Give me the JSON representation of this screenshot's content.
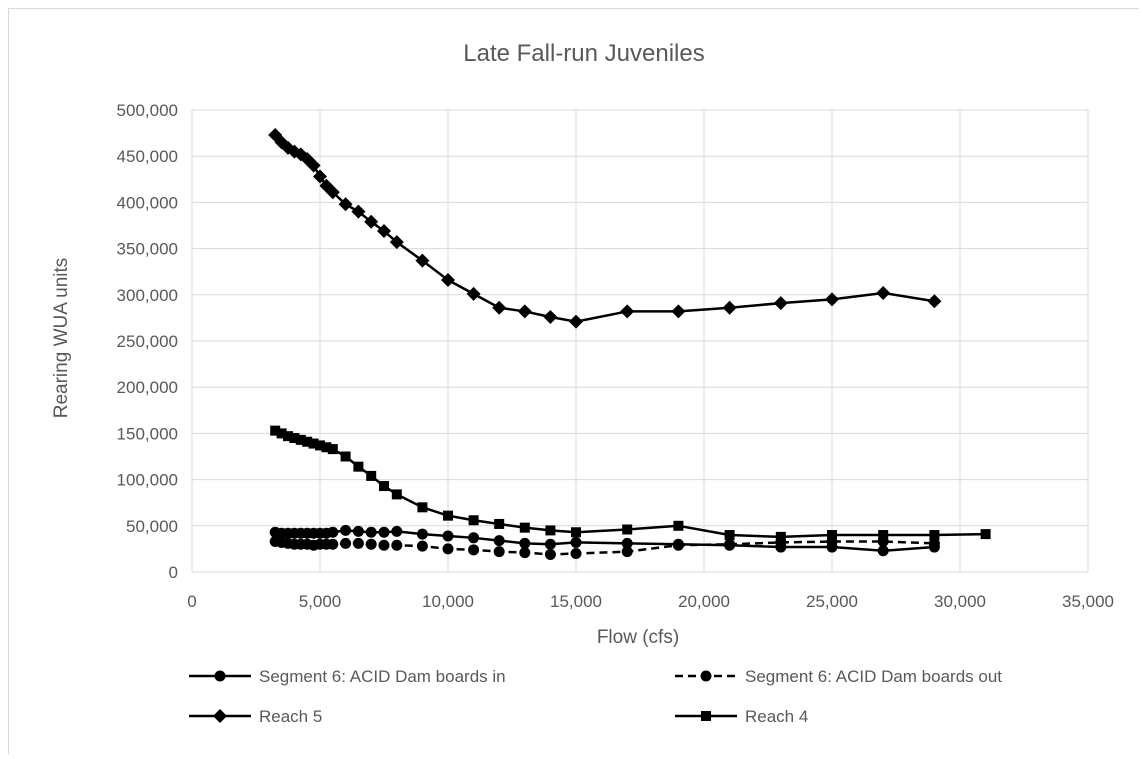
{
  "chart_data": {
    "type": "line",
    "title": "Late Fall-run Juveniles",
    "xlabel": "Flow (cfs)",
    "ylabel": "Rearing WUA units",
    "xlim": [
      0,
      35000
    ],
    "ylim": [
      0,
      500000
    ],
    "x_ticks": [
      "0",
      "5,000",
      "10,000",
      "15,000",
      "20,000",
      "25,000",
      "30,000",
      "35,000"
    ],
    "y_ticks": [
      "0",
      "50,000",
      "100,000",
      "150,000",
      "200,000",
      "250,000",
      "300,000",
      "350,000",
      "400,000",
      "450,000",
      "500,000"
    ],
    "grid": "major gridlines",
    "legend_position": "bottom",
    "series": [
      {
        "name": "Segment 6: ACID Dam boards in",
        "marker": "circle",
        "line": "solid",
        "x": [
          3250,
          3500,
          3750,
          4000,
          4250,
          4500,
          4750,
          5000,
          5250,
          5500,
          6000,
          6500,
          7000,
          7500,
          8000,
          9000,
          10000,
          11000,
          12000,
          13000,
          14000,
          15000,
          17000,
          19000,
          21000,
          23000,
          25000,
          27000,
          29000
        ],
        "y": [
          43000,
          42000,
          42000,
          42000,
          42000,
          42000,
          42000,
          42000,
          42000,
          43000,
          45000,
          44000,
          43000,
          43000,
          44000,
          41000,
          39000,
          37000,
          34000,
          31000,
          30000,
          32000,
          31000,
          30000,
          29000,
          27000,
          27000,
          23000,
          27000
        ]
      },
      {
        "name": "Segment 6: ACID Dam boards out",
        "marker": "circle",
        "line": "dashed",
        "x": [
          3250,
          3500,
          3750,
          4000,
          4250,
          4500,
          4750,
          5000,
          5250,
          5500,
          6000,
          6500,
          7000,
          7500,
          8000,
          9000,
          10000,
          11000,
          12000,
          13000,
          14000,
          15000,
          17000,
          19000,
          21000,
          23000,
          25000,
          27000,
          29000
        ],
        "y": [
          33000,
          32000,
          31000,
          30000,
          30000,
          30000,
          29000,
          30000,
          30000,
          30000,
          31000,
          31000,
          30000,
          29000,
          29000,
          28000,
          25000,
          24000,
          22000,
          21000,
          19000,
          20000,
          22000,
          29000,
          30000,
          32000,
          33000,
          33000,
          31000
        ]
      },
      {
        "name": "Reach 5",
        "marker": "diamond",
        "line": "solid",
        "x": [
          3250,
          3500,
          3750,
          4000,
          4250,
          4500,
          4750,
          5000,
          5250,
          5500,
          6000,
          6500,
          7000,
          7500,
          8000,
          9000,
          10000,
          11000,
          12000,
          13000,
          14000,
          15000,
          17000,
          19000,
          21000,
          23000,
          25000,
          27000,
          29000
        ],
        "y": [
          473000,
          465000,
          459000,
          455000,
          452000,
          447000,
          440000,
          428000,
          418000,
          411000,
          398000,
          390000,
          379000,
          369000,
          357000,
          337000,
          316000,
          301000,
          286000,
          282000,
          276000,
          271000,
          282000,
          282000,
          286000,
          291000,
          295000,
          302000,
          293000
        ]
      },
      {
        "name": "Reach 4",
        "marker": "square",
        "line": "solid",
        "x": [
          3250,
          3500,
          3750,
          4000,
          4250,
          4500,
          4750,
          5000,
          5250,
          5500,
          6000,
          6500,
          7000,
          7500,
          8000,
          9000,
          10000,
          11000,
          12000,
          13000,
          14000,
          15000,
          17000,
          19000,
          21000,
          23000,
          25000,
          27000,
          29000,
          31000
        ],
        "y": [
          153000,
          150000,
          147000,
          145000,
          143000,
          141000,
          139000,
          137000,
          135000,
          133000,
          125000,
          114000,
          104000,
          93000,
          84000,
          70000,
          61000,
          56000,
          52000,
          48000,
          45000,
          43000,
          46000,
          50000,
          40000,
          38000,
          40000,
          40000,
          40000,
          41000
        ]
      }
    ]
  }
}
